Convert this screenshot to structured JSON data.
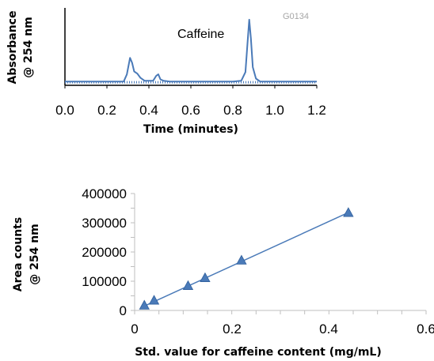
{
  "chart_data": [
    {
      "type": "line",
      "title": "",
      "xlabel": "Time (minutes)",
      "ylabel": "Absorbance @ 254 nm",
      "ylabel_lines": [
        "Absorbance",
        "@ 254 nm"
      ],
      "xlim": [
        0.0,
        1.2
      ],
      "ylim": [
        0,
        1
      ],
      "x_ticks": [
        "0.0",
        "0.2",
        "0.4",
        "0.6",
        "0.8",
        "1.0",
        "1.2"
      ],
      "x_tick_values": [
        0.0,
        0.2,
        0.4,
        0.6,
        0.8,
        1.0,
        1.2
      ],
      "y_ticks_labeled": false,
      "grid": false,
      "color": "#4a7ab8",
      "annotations": [
        {
          "text": "Caffeine",
          "x": 0.82,
          "y": 0.68
        },
        {
          "text": "G0134",
          "x": 0.95,
          "y": 0.92,
          "role": "watermark"
        }
      ],
      "series": [
        {
          "x": [
            0.0,
            0.28,
            0.295,
            0.31,
            0.32,
            0.33,
            0.345,
            0.36,
            0.38,
            0.42,
            0.435,
            0.445,
            0.455,
            0.47,
            0.5,
            0.6,
            0.7,
            0.8,
            0.84,
            0.86,
            0.87,
            0.878,
            0.886,
            0.895,
            0.91,
            0.93,
            1.0,
            1.2
          ],
          "y": [
            0.02,
            0.02,
            0.12,
            0.35,
            0.28,
            0.16,
            0.13,
            0.07,
            0.03,
            0.03,
            0.1,
            0.12,
            0.05,
            0.03,
            0.02,
            0.02,
            0.02,
            0.02,
            0.03,
            0.15,
            0.55,
            0.88,
            0.62,
            0.22,
            0.06,
            0.02,
            0.02,
            0.02
          ]
        }
      ]
    },
    {
      "type": "scatter",
      "title": "",
      "xlabel": "Std. value for caffeine content (mg/mL)",
      "ylabel": "Area counts @ 254 nm",
      "ylabel_lines": [
        "Area counts",
        "@ 254 nm"
      ],
      "xlim": [
        0,
        0.6
      ],
      "ylim": [
        0,
        400000
      ],
      "x_ticks": [
        "0",
        "0.2",
        "0.4",
        "0.6"
      ],
      "x_tick_values": [
        0,
        0.2,
        0.4,
        0.6
      ],
      "y_ticks": [
        "0",
        "100000",
        "200000",
        "300000",
        "400000"
      ],
      "y_tick_values": [
        0,
        100000,
        200000,
        300000,
        400000
      ],
      "grid": false,
      "marker": "triangle",
      "color": "#4a7ab8",
      "trendline": {
        "x": [
          0.02,
          0.44
        ],
        "y": [
          15000,
          335000
        ]
      },
      "series": [
        {
          "x": [
            0.02,
            0.04,
            0.11,
            0.145,
            0.22,
            0.44
          ],
          "y": [
            18000,
            35000,
            85000,
            112000,
            172000,
            335000
          ]
        }
      ]
    }
  ]
}
